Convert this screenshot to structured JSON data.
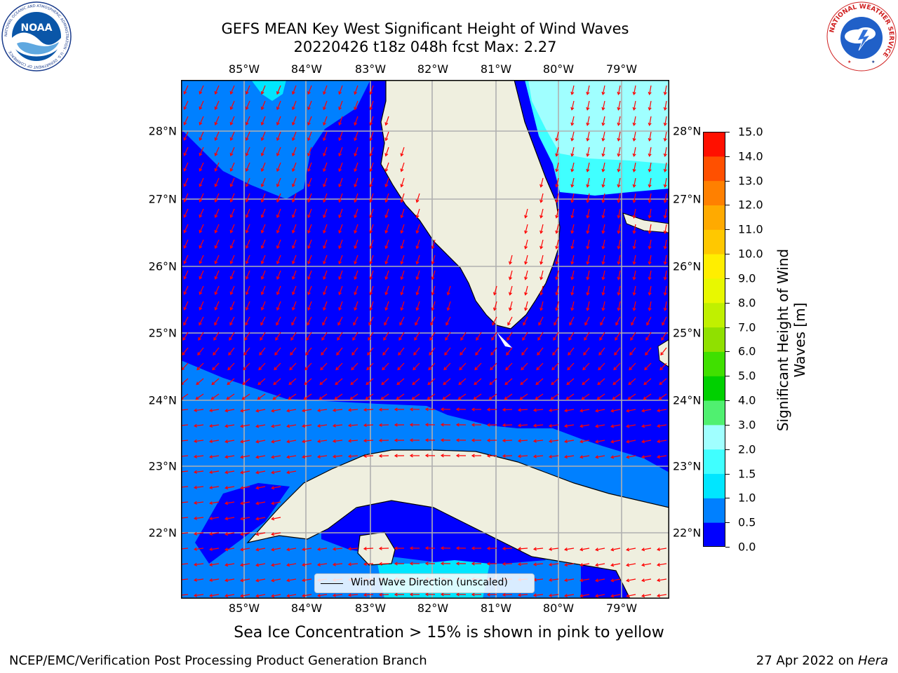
{
  "header": {
    "title_line1": "GEFS MEAN Key West Significant Height of Wind Waves",
    "title_line2": "20220426 t18z 048h fcst   Max: 2.27"
  },
  "logos": {
    "noaa": {
      "text": "NOAA",
      "ring_text": "NATIONAL OCEANIC AND ATMOSPHERIC ADMINISTRATION · U.S. DEPARTMENT OF COMMERCE"
    },
    "nws": {
      "ring_text": "NATIONAL WEATHER SERVICE"
    }
  },
  "map": {
    "lon_labels": [
      "85°W",
      "84°W",
      "83°W",
      "82°W",
      "81°W",
      "80°W",
      "79°W"
    ],
    "lat_labels": [
      "28°N",
      "27°N",
      "26°N",
      "25°N",
      "24°N",
      "23°N",
      "22°N"
    ],
    "lon_range": [
      -86.0,
      -78.3
    ],
    "lat_range": [
      21.0,
      28.8
    ],
    "grid": true,
    "legend": {
      "label": "Wind Wave Direction (unscaled)",
      "placement": "bottom-center"
    },
    "colors": {
      "land": "#efefdf",
      "coast": "#000000",
      "arrows": "#ff0000",
      "gridlines": "#b0b0b0"
    }
  },
  "colorbar": {
    "label_line1": "Significant Height of Wind",
    "label_line2": "Waves [m]",
    "ticks": [
      "0.0",
      "0.5",
      "1.0",
      "1.5",
      "2.0",
      "3.0",
      "4.0",
      "5.0",
      "6.0",
      "7.0",
      "8.0",
      "9.0",
      "10.0",
      "11.0",
      "12.0",
      "13.0",
      "14.0",
      "15.0"
    ],
    "levels": [
      0.0,
      0.5,
      1.0,
      1.5,
      2.0,
      3.0,
      4.0,
      5.0,
      6.0,
      7.0,
      8.0,
      9.0,
      10.0,
      11.0,
      12.0,
      13.0,
      14.0,
      15.0
    ],
    "colors": [
      "#0000ff",
      "#0080ff",
      "#00e6ff",
      "#40ffff",
      "#a0ffff",
      "#50f070",
      "#00d000",
      "#40e000",
      "#90e000",
      "#c0f000",
      "#e8f800",
      "#ffee00",
      "#ffc800",
      "#ffaa00",
      "#ff8000",
      "#ff5000",
      "#ff1000"
    ]
  },
  "notes": {
    "sea_ice": "Sea Ice Concentration > 15% is shown in pink to yellow"
  },
  "footer": {
    "left": "NCEP/EMC/Verification Post Processing Product Generation Branch",
    "date": "27 Apr 2022 on ",
    "machine": "Hera"
  }
}
